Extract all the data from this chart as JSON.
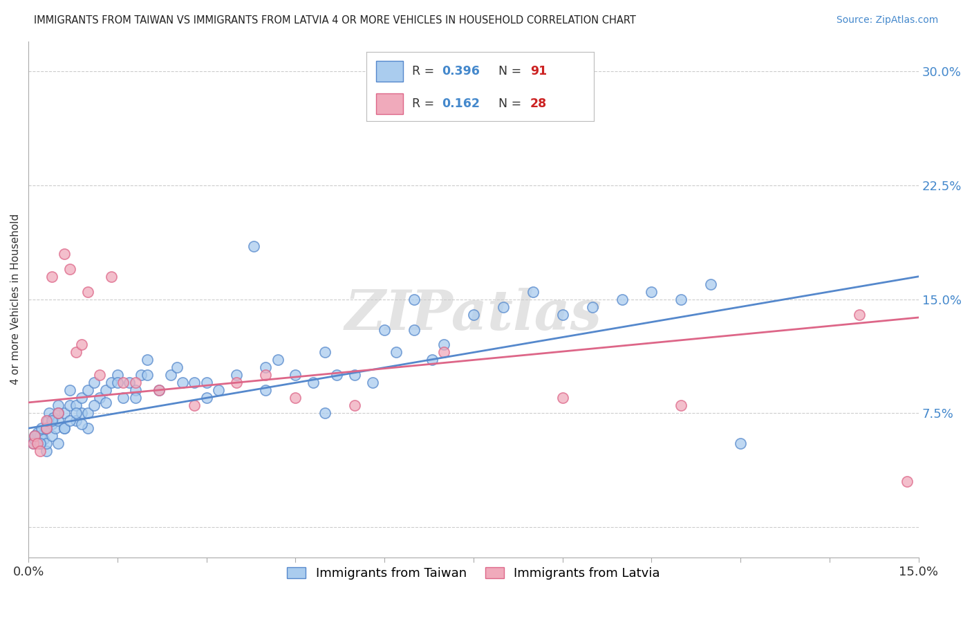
{
  "title": "IMMIGRANTS FROM TAIWAN VS IMMIGRANTS FROM LATVIA 4 OR MORE VEHICLES IN HOUSEHOLD CORRELATION CHART",
  "source": "Source: ZipAtlas.com",
  "ylabel": "4 or more Vehicles in Household",
  "xlim": [
    0.0,
    0.15
  ],
  "ylim": [
    -0.02,
    0.32
  ],
  "xticks": [
    0.0,
    0.015,
    0.03,
    0.045,
    0.06,
    0.075,
    0.09,
    0.105,
    0.12,
    0.135,
    0.15
  ],
  "yticks_right": [
    0.0,
    0.075,
    0.15,
    0.225,
    0.3
  ],
  "ytick_labels_right": [
    "",
    "7.5%",
    "15.0%",
    "22.5%",
    "30.0%"
  ],
  "taiwan_R": "0.396",
  "taiwan_N": "91",
  "latvia_R": "0.162",
  "latvia_N": "28",
  "taiwan_color": "#aaccee",
  "latvia_color": "#f0aabb",
  "taiwan_line_color": "#5588cc",
  "latvia_line_color": "#dd6688",
  "watermark": "ZIPatlas",
  "taiwan_x": [
    0.0008,
    0.001,
    0.0012,
    0.0015,
    0.002,
    0.002,
    0.0022,
    0.0025,
    0.003,
    0.003,
    0.003,
    0.0032,
    0.0035,
    0.004,
    0.004,
    0.0042,
    0.0045,
    0.005,
    0.005,
    0.005,
    0.006,
    0.006,
    0.007,
    0.007,
    0.008,
    0.008,
    0.009,
    0.009,
    0.01,
    0.01,
    0.011,
    0.012,
    0.013,
    0.014,
    0.015,
    0.016,
    0.017,
    0.018,
    0.019,
    0.02,
    0.022,
    0.024,
    0.026,
    0.028,
    0.03,
    0.032,
    0.035,
    0.038,
    0.04,
    0.042,
    0.045,
    0.048,
    0.05,
    0.052,
    0.055,
    0.058,
    0.06,
    0.062,
    0.065,
    0.068,
    0.07,
    0.075,
    0.08,
    0.085,
    0.09,
    0.095,
    0.1,
    0.105,
    0.11,
    0.115,
    0.001,
    0.002,
    0.003,
    0.004,
    0.005,
    0.006,
    0.007,
    0.008,
    0.009,
    0.01,
    0.011,
    0.013,
    0.015,
    0.018,
    0.02,
    0.025,
    0.03,
    0.04,
    0.05,
    0.065,
    0.12
  ],
  "taiwan_y": [
    0.055,
    0.058,
    0.06,
    0.062,
    0.055,
    0.06,
    0.065,
    0.058,
    0.05,
    0.055,
    0.065,
    0.07,
    0.075,
    0.06,
    0.068,
    0.072,
    0.065,
    0.055,
    0.07,
    0.08,
    0.065,
    0.075,
    0.08,
    0.09,
    0.07,
    0.08,
    0.075,
    0.085,
    0.065,
    0.09,
    0.095,
    0.085,
    0.09,
    0.095,
    0.1,
    0.085,
    0.095,
    0.09,
    0.1,
    0.11,
    0.09,
    0.1,
    0.095,
    0.095,
    0.085,
    0.09,
    0.1,
    0.185,
    0.09,
    0.11,
    0.1,
    0.095,
    0.075,
    0.1,
    0.1,
    0.095,
    0.13,
    0.115,
    0.13,
    0.11,
    0.12,
    0.14,
    0.145,
    0.155,
    0.14,
    0.145,
    0.15,
    0.155,
    0.15,
    0.16,
    0.06,
    0.055,
    0.065,
    0.07,
    0.075,
    0.065,
    0.07,
    0.075,
    0.068,
    0.075,
    0.08,
    0.082,
    0.095,
    0.085,
    0.1,
    0.105,
    0.095,
    0.105,
    0.115,
    0.15,
    0.055
  ],
  "latvia_x": [
    0.0008,
    0.001,
    0.0015,
    0.002,
    0.003,
    0.003,
    0.004,
    0.005,
    0.006,
    0.007,
    0.008,
    0.009,
    0.01,
    0.012,
    0.014,
    0.016,
    0.018,
    0.022,
    0.028,
    0.035,
    0.04,
    0.045,
    0.055,
    0.07,
    0.09,
    0.11,
    0.14,
    0.148
  ],
  "latvia_y": [
    0.055,
    0.06,
    0.055,
    0.05,
    0.065,
    0.07,
    0.165,
    0.075,
    0.18,
    0.17,
    0.115,
    0.12,
    0.155,
    0.1,
    0.165,
    0.095,
    0.095,
    0.09,
    0.08,
    0.095,
    0.1,
    0.085,
    0.08,
    0.115,
    0.085,
    0.08,
    0.14,
    0.03
  ],
  "taiwan_reg": [
    0.065,
    0.165
  ],
  "latvia_reg": [
    0.082,
    0.138
  ]
}
